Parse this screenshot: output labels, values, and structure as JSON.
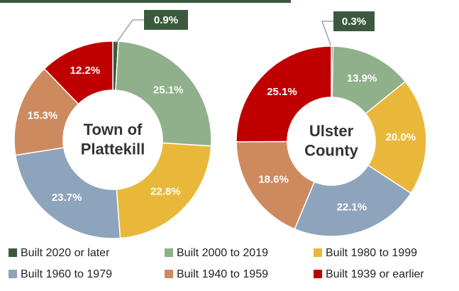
{
  "chart_data": {
    "type": "pie",
    "categories": [
      "Built 2020 or later",
      "Built 2000 to 2019",
      "Built 1980 to 1999",
      "Built 1960 to 1979",
      "Built 1940 to 1959",
      "Built 1939 or earlier"
    ],
    "colors": [
      "#3b5a3d",
      "#8fb08a",
      "#e9b83b",
      "#8ea3bc",
      "#cd8a5f",
      "#c00000"
    ],
    "series": [
      {
        "name": "Town of Plattekill",
        "values": [
          0.9,
          25.1,
          22.8,
          23.7,
          15.3,
          12.2
        ],
        "value_labels": [
          "0.9%",
          "25.1%",
          "22.8%",
          "23.7%",
          "15.3%",
          "12.2%"
        ]
      },
      {
        "name": "Ulster County",
        "values": [
          0.3,
          13.9,
          20.0,
          22.1,
          18.6,
          25.1
        ],
        "value_labels": [
          "0.3%",
          "13.9%",
          "20.0%",
          "22.1%",
          "18.6%",
          "25.1%"
        ]
      }
    ]
  }
}
